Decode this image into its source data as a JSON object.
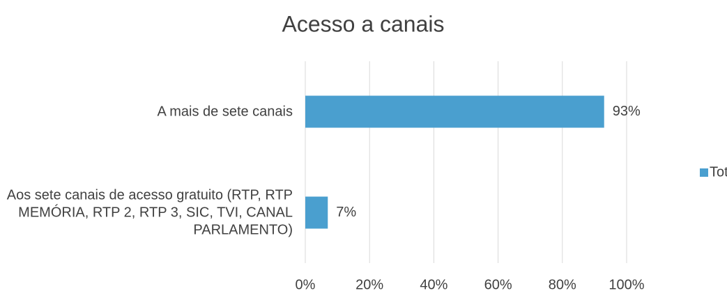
{
  "chart_data": {
    "type": "hbar",
    "title": "Acesso a canais",
    "categories": [
      "A mais de sete canais",
      "Aos sete canais de acesso gratuito (RTP, RTP MEMÓRIA, RTP 2, RTP 3, SIC, TVI, CANAL PARLAMENTO)"
    ],
    "series": [
      {
        "name": "Total",
        "color": "#4a9fcf",
        "values": [
          93,
          7
        ],
        "value_labels": [
          "93%",
          "7%"
        ]
      }
    ],
    "xlim": [
      0,
      100
    ],
    "xticks": [
      {
        "value": 0,
        "label": "0%"
      },
      {
        "value": 20,
        "label": "20%"
      },
      {
        "value": 40,
        "label": "40%"
      },
      {
        "value": 60,
        "label": "60%"
      },
      {
        "value": 80,
        "label": "80%"
      },
      {
        "value": 100,
        "label": "100%"
      }
    ],
    "grid": true,
    "legend": "right"
  }
}
